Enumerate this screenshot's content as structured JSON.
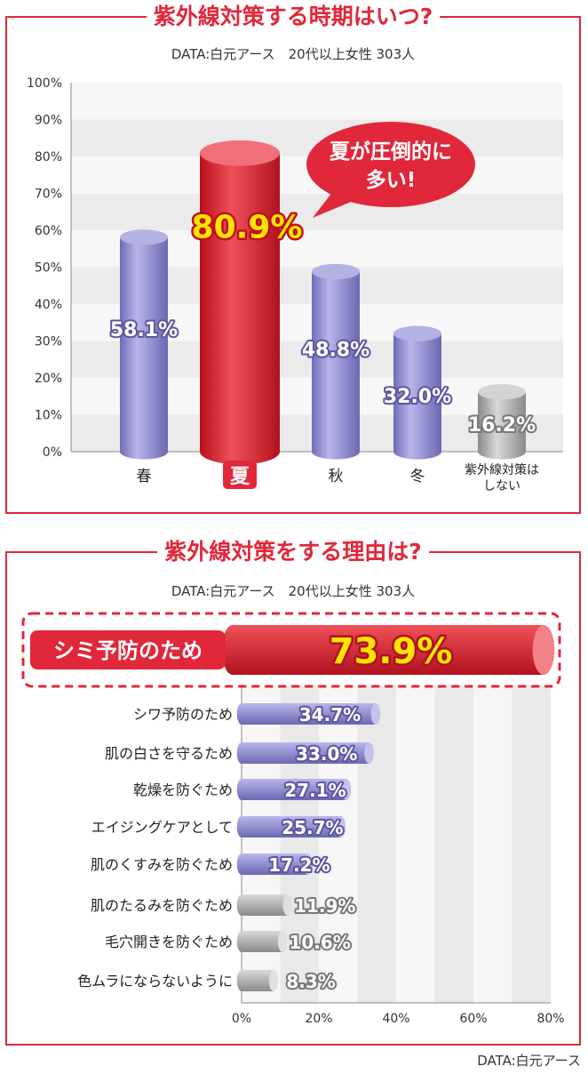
{
  "chart1": {
    "title": "紫外線対策する時期はいつ?",
    "subtitle": "DATA:白元アース　20代以上女性 303人",
    "callout": [
      "夏が圧倒的に",
      "多い!"
    ],
    "colors": {
      "highlight": "#e0283a",
      "bar": "#8a86cc",
      "gray": "#a8a8a8",
      "label_yellow": "#ffe400"
    }
  },
  "chart2": {
    "title": "紫外線対策をする理由は?",
    "subtitle": "DATA:白元アース　20代以上女性 303人"
  },
  "footer": "DATA:白元アース",
  "chart_data": [
    {
      "type": "bar",
      "title": "紫外線対策する時期はいつ?",
      "categories": [
        "春",
        "夏",
        "秋",
        "冬",
        "紫外線対策はしない"
      ],
      "category_lines": [
        [
          "春"
        ],
        [
          "夏"
        ],
        [
          "秋"
        ],
        [
          "冬"
        ],
        [
          "紫外線対策は",
          "しない"
        ]
      ],
      "values": [
        58.1,
        80.9,
        48.8,
        32.0,
        16.2
      ],
      "value_labels": [
        "58.1%",
        "80.9%",
        "48.8%",
        "32.0%",
        "16.2%"
      ],
      "styles": [
        "bar",
        "highlight",
        "bar",
        "bar",
        "gray"
      ],
      "ylim": [
        0,
        100
      ],
      "yticks": [
        "0%",
        "10%",
        "20%",
        "30%",
        "40%",
        "50%",
        "60%",
        "70%",
        "80%",
        "90%",
        "100%"
      ],
      "grid": true
    },
    {
      "type": "bar",
      "orientation": "horizontal",
      "title": "紫外線対策をする理由は?",
      "categories": [
        "シミ予防のため",
        "シワ予防のため",
        "肌の白さを守るため",
        "乾燥を防ぐため",
        "エイジングケアとして",
        "肌のくすみを防ぐため",
        "肌のたるみを防ぐため",
        "毛穴開きを防ぐため",
        "色ムラにならないように"
      ],
      "values": [
        73.9,
        34.7,
        33.0,
        27.1,
        25.7,
        17.2,
        11.9,
        10.6,
        8.3
      ],
      "value_labels": [
        "73.9%",
        "34.7%",
        "33.0%",
        "27.1%",
        "25.7%",
        "17.2%",
        "11.9%",
        "10.6%",
        "8.3%"
      ],
      "styles": [
        "highlight",
        "bar",
        "bar",
        "bar",
        "bar",
        "bar",
        "gray",
        "gray",
        "gray"
      ],
      "xlim": [
        0,
        80
      ],
      "xticks": [
        "0%",
        "20%",
        "40%",
        "60%",
        "80%"
      ],
      "grid": true
    }
  ]
}
